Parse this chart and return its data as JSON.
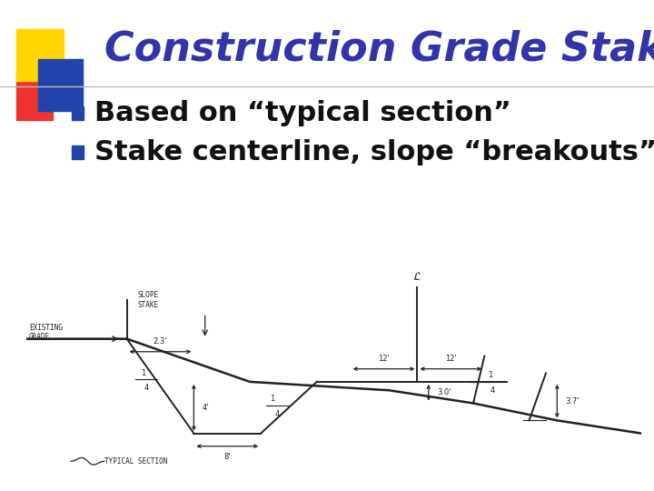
{
  "title": "Construction Grade Staking",
  "title_color": "#3333AA",
  "title_fontsize": 32,
  "bullet_fontsize": 22,
  "bullets": [
    "Based on “typical section”",
    "Stake centerline, slope “breakouts”"
  ],
  "bg_color": "#FFFFFF",
  "accent_yellow": "#FFD700",
  "accent_red": "#EE3333",
  "accent_blue": "#2244AA",
  "separator_color": "#BBBBBB",
  "bullet_square_color": "#2244AA",
  "sketch_line_color": "#222222"
}
